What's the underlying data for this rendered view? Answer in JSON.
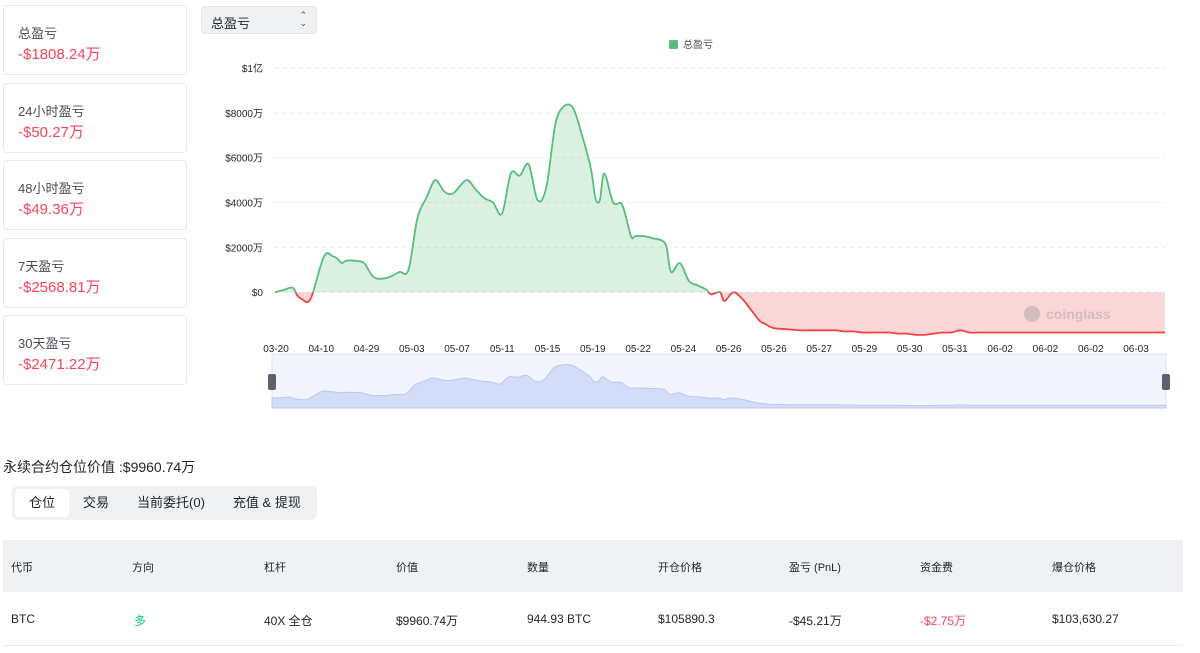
{
  "stats": [
    {
      "label": "总盈亏",
      "value": "-$1808.24万"
    },
    {
      "label": "24小时盈亏",
      "value": "-$50.27万"
    },
    {
      "label": "48小时盈亏",
      "value": "-$49.36万"
    },
    {
      "label": "7天盈亏",
      "value": "-$2568.81万"
    },
    {
      "label": "30天盈亏",
      "value": "-$2471.22万"
    }
  ],
  "selector": {
    "value": "总盈亏"
  },
  "chart_data": {
    "type": "area",
    "legend": {
      "label": "总盈亏",
      "placement": "top-center"
    },
    "y_unit": "万美元",
    "ylim": [
      -2000,
      10000
    ],
    "y_ticks": [
      0,
      2000,
      4000,
      6000,
      8000,
      10000
    ],
    "y_tick_labels": [
      "$0",
      "$2000万",
      "$4000万",
      "$6000万",
      "$8000万",
      "$1亿"
    ],
    "x_tick_labels": [
      "03-20",
      "04-10",
      "04-29",
      "05-03",
      "05-07",
      "05-11",
      "05-15",
      "05-19",
      "05-22",
      "05-24",
      "05-26",
      "05-26",
      "05-27",
      "05-29",
      "05-30",
      "05-31",
      "06-02",
      "06-02",
      "06-02",
      "06-03"
    ],
    "series": [
      {
        "x": [
          0.0,
          0.01,
          0.02,
          0.025,
          0.03,
          0.04,
          0.055,
          0.065,
          0.07,
          0.075,
          0.08,
          0.09,
          0.1,
          0.11,
          0.12,
          0.13,
          0.14,
          0.15,
          0.16,
          0.17,
          0.18,
          0.19,
          0.2,
          0.215,
          0.225,
          0.235,
          0.245,
          0.255,
          0.265,
          0.275,
          0.285,
          0.295,
          0.305,
          0.315,
          0.325,
          0.335,
          0.345,
          0.355,
          0.36,
          0.365,
          0.37,
          0.38,
          0.39,
          0.4,
          0.405,
          0.415,
          0.425,
          0.435,
          0.44,
          0.445,
          0.455,
          0.465,
          0.475,
          0.485,
          0.49,
          0.5,
          0.505,
          0.515,
          0.525,
          0.535,
          0.545,
          0.55,
          0.56,
          0.575,
          0.59,
          0.6,
          0.61,
          0.62,
          0.625,
          0.63,
          0.64,
          0.65,
          0.66,
          0.67,
          0.68,
          0.685,
          0.69,
          0.7,
          0.71,
          0.72,
          0.73,
          0.74,
          0.75,
          0.76,
          0.77,
          0.78,
          0.79,
          0.8,
          0.82,
          0.84,
          0.86,
          0.88,
          0.9,
          0.92,
          0.94,
          0.96,
          0.98,
          1.0
        ],
        "y": [
          0,
          100,
          200,
          -150,
          -300,
          -300,
          1600,
          1600,
          1500,
          1300,
          1400,
          1400,
          1300,
          700,
          600,
          700,
          900,
          1000,
          3300,
          4200,
          5000,
          4500,
          4400,
          5000,
          4600,
          4200,
          4000,
          3500,
          5300,
          5200,
          5700,
          4100,
          4700,
          7500,
          8300,
          8200,
          7000,
          5500,
          4200,
          4100,
          5300,
          4000,
          3900,
          2500,
          2500,
          2500,
          2400,
          2300,
          2000,
          900,
          1300,
          500,
          300,
          100,
          -100,
          0,
          -400,
          0,
          -300,
          -800,
          -1300,
          -1400,
          -1600,
          -1650,
          -1700,
          -1700,
          -1700,
          -1700,
          -1700,
          -1700,
          -1750,
          -1750,
          -1800,
          -1800,
          -1800,
          -1800,
          -1800,
          -1850,
          -1850,
          -1900,
          -1900,
          -1850,
          -1800,
          -1800,
          -1700,
          -1800,
          -1800,
          -1800,
          -1800,
          -1800,
          -1800,
          -1800,
          -1800,
          -1800,
          -1800,
          -1800,
          -1800,
          -1800
        ]
      }
    ],
    "zero_split_colors": {
      "positive": "#58bd7d",
      "negative": "#ef4444"
    },
    "watermark": "coinglass"
  },
  "position_value": "永续合约仓位价值 :$9960.74万",
  "tabs": [
    {
      "label": "仓位",
      "active": true
    },
    {
      "label": "交易",
      "active": false
    },
    {
      "label": "当前委托(0)",
      "active": false
    },
    {
      "label": "充值 & 提现",
      "active": false
    }
  ],
  "table": {
    "headers": [
      "代币",
      "方向",
      "杠杆",
      "价值",
      "数量",
      "开仓价格",
      "盈亏 (PnL)",
      "资金费",
      "爆仓价格"
    ],
    "rows": [
      [
        "BTC",
        "多",
        "40X 全仓",
        "$9960.74万",
        "944.93 BTC",
        "$105890.3",
        "-$45.21万",
        "-$2.75万",
        "$103,630.27"
      ]
    ]
  }
}
